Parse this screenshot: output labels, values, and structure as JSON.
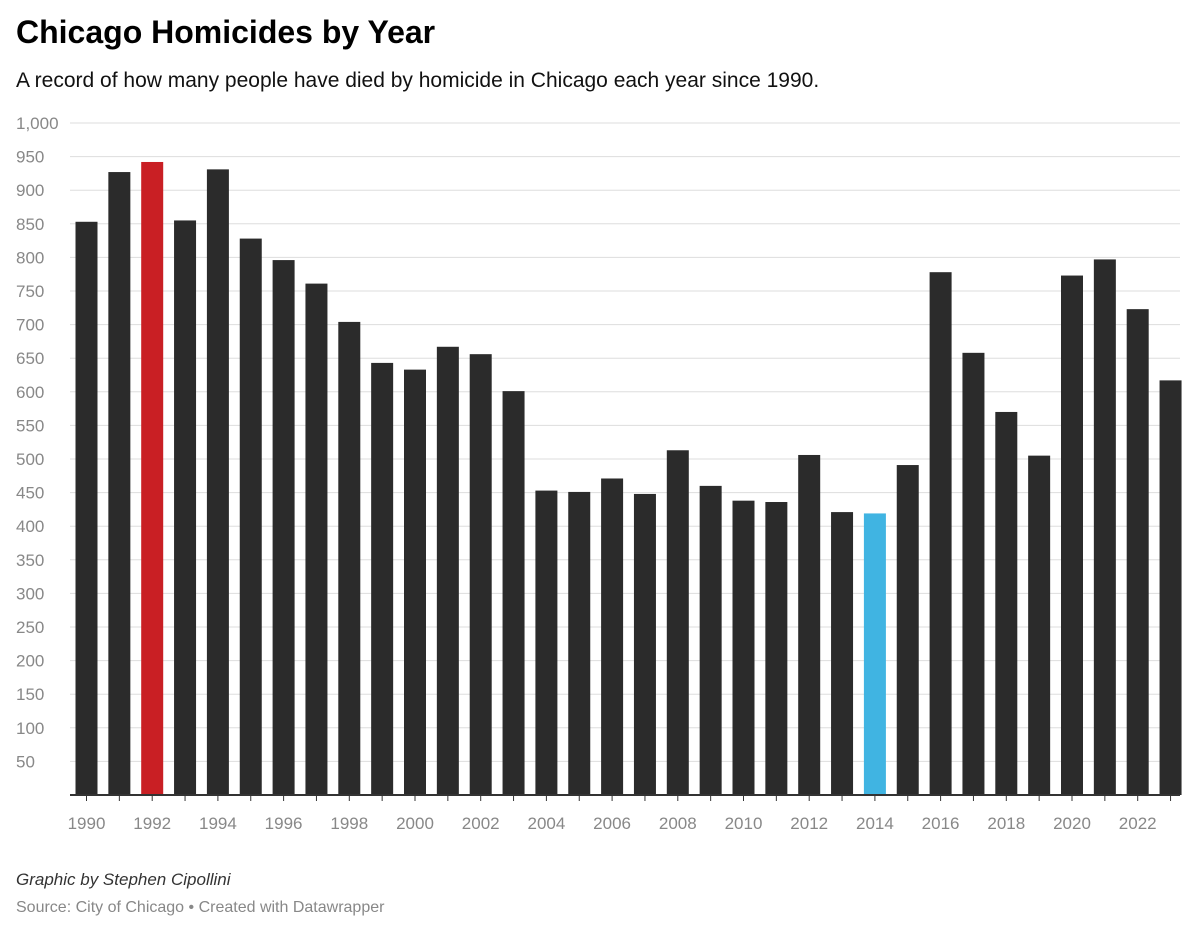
{
  "header": {
    "title": "Chicago Homicides by Year",
    "subtitle": "A record of how many people have died by homicide in Chicago each year since 1990."
  },
  "footer": {
    "credit": "Graphic by Stephen Cipollini",
    "source": "Source: City of Chicago",
    "separator": " • ",
    "tool": "Created with Datawrapper"
  },
  "colors": {
    "bar": "#2b2b2b",
    "highlight_max": "#c91f24",
    "highlight_min": "#40b4e2",
    "grid": "#dddddd",
    "axis": "#333333",
    "tick_label": "#888888"
  },
  "chart_data": {
    "type": "bar",
    "title": "Chicago Homicides by Year",
    "subtitle": "A record of how many people have died by homicide in Chicago each year since 1990.",
    "xlabel": "",
    "ylabel": "",
    "ylim": [
      0,
      1000
    ],
    "yticks": [
      50,
      100,
      150,
      200,
      250,
      300,
      350,
      400,
      450,
      500,
      550,
      600,
      650,
      700,
      750,
      800,
      850,
      900,
      950,
      1000
    ],
    "ytick_labels": [
      "50",
      "100",
      "150",
      "200",
      "250",
      "300",
      "350",
      "400",
      "450",
      "500",
      "550",
      "600",
      "650",
      "700",
      "750",
      "800",
      "850",
      "900",
      "950",
      "1,000"
    ],
    "xtick_labels": [
      "1990",
      "1992",
      "1994",
      "1996",
      "1998",
      "2000",
      "2002",
      "2004",
      "2006",
      "2008",
      "2010",
      "2012",
      "2014",
      "2016",
      "2018",
      "2020",
      "2022"
    ],
    "grid": true,
    "legend": "none",
    "categories": [
      "1990",
      "1991",
      "1992",
      "1993",
      "1994",
      "1995",
      "1996",
      "1997",
      "1998",
      "1999",
      "2000",
      "2001",
      "2002",
      "2003",
      "2004",
      "2005",
      "2006",
      "2007",
      "2008",
      "2009",
      "2010",
      "2011",
      "2012",
      "2013",
      "2014",
      "2015",
      "2016",
      "2017",
      "2018",
      "2019",
      "2020",
      "2021",
      "2022",
      "2023"
    ],
    "values": [
      853,
      927,
      942,
      855,
      931,
      828,
      796,
      761,
      704,
      643,
      633,
      667,
      656,
      601,
      453,
      451,
      471,
      448,
      513,
      460,
      438,
      436,
      506,
      421,
      419,
      491,
      778,
      658,
      570,
      505,
      773,
      797,
      723,
      617
    ],
    "highlights": {
      "1992": "highlight_max",
      "2014": "highlight_min"
    }
  }
}
